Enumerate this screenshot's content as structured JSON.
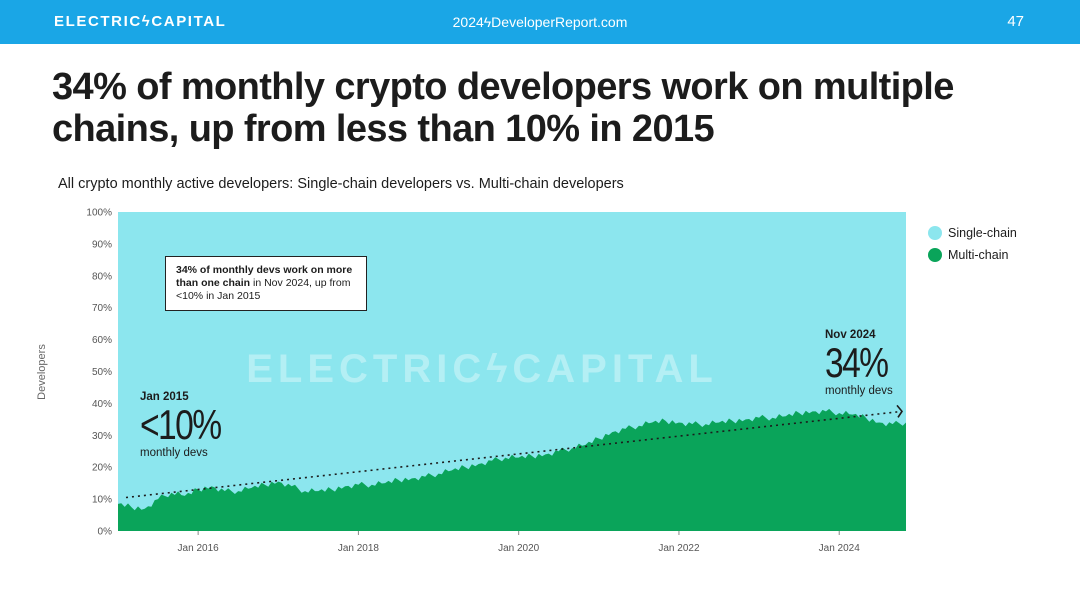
{
  "header": {
    "brand": "ELECTRICϟCAPITAL",
    "site": "2024ϟDeveloperReport.com",
    "page_number": "47"
  },
  "title": "34% of monthly crypto developers work on multiple chains, up from less than 10% in 2015",
  "chart_data": {
    "type": "area",
    "title": "All crypto monthly active developers: Single-chain developers vs. Multi-chain developers",
    "ylabel": "Developers",
    "xlabel": "",
    "ylim": [
      0,
      100
    ],
    "y_unit": "%",
    "y_ticks": [
      "0%",
      "10%",
      "20%",
      "30%",
      "40%",
      "50%",
      "60%",
      "70%",
      "80%",
      "90%",
      "100%"
    ],
    "x_ticks": [
      "Jan 2016",
      "Jan 2018",
      "Jan 2020",
      "Jan 2022",
      "Jan 2024"
    ],
    "x_start": "2015-01",
    "x_end": "2024-11",
    "grid": false,
    "legend_position": "top-right",
    "series": [
      {
        "name": "Single-chain",
        "color": "#8ce6ee",
        "values": "remainder to 100%"
      },
      {
        "name": "Multi-chain",
        "color": "#0aa45a",
        "x": [
          "2015-01",
          "2015-03",
          "2015-05",
          "2015-07",
          "2015-09",
          "2015-11",
          "2016-01",
          "2016-03",
          "2016-05",
          "2016-07",
          "2016-09",
          "2016-11",
          "2017-01",
          "2017-03",
          "2017-05",
          "2017-07",
          "2017-09",
          "2017-11",
          "2018-01",
          "2018-03",
          "2018-05",
          "2018-07",
          "2018-09",
          "2018-11",
          "2019-01",
          "2019-03",
          "2019-05",
          "2019-07",
          "2019-09",
          "2019-11",
          "2020-01",
          "2020-03",
          "2020-05",
          "2020-07",
          "2020-09",
          "2020-11",
          "2021-01",
          "2021-03",
          "2021-05",
          "2021-07",
          "2021-09",
          "2021-11",
          "2022-01",
          "2022-03",
          "2022-05",
          "2022-07",
          "2022-09",
          "2022-11",
          "2023-01",
          "2023-03",
          "2023-05",
          "2023-07",
          "2023-09",
          "2023-11",
          "2024-01",
          "2024-03",
          "2024-05",
          "2024-07",
          "2024-09",
          "2024-11"
        ],
        "values": [
          8.5,
          7.5,
          7,
          10,
          12,
          11,
          13,
          14,
          12.5,
          12.5,
          13.5,
          14.5,
          15.5,
          14,
          12.5,
          12.5,
          13,
          14,
          14.5,
          14.5,
          15,
          16,
          16.5,
          17,
          18,
          19,
          20,
          21,
          22,
          23,
          23,
          23.5,
          24,
          25,
          26,
          27,
          29,
          31,
          32,
          33,
          34,
          34.5,
          34,
          33.5,
          33.5,
          34,
          34.5,
          35,
          35.5,
          35.5,
          36,
          37,
          37.5,
          37.5,
          37,
          36.5,
          35.5,
          34,
          33.5,
          34
        ]
      }
    ],
    "trend_line": {
      "from": [
        "2015-01",
        10.5
      ],
      "to": [
        "2024-11",
        37.5
      ]
    },
    "annotations": {
      "callout_bold": "34% of monthly devs work on more than one chain",
      "callout_rest": " in Nov 2024, up from <10% in Jan 2015",
      "left_date": "Jan 2015",
      "left_value": "<10%",
      "left_caption": "monthly devs",
      "right_date": "Nov 2024",
      "right_value": "34%",
      "right_caption": "monthly devs"
    },
    "watermark": "ELECTRICϟCAPITAL"
  }
}
